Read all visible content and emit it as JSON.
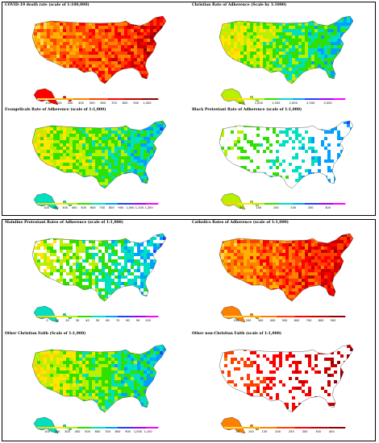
{
  "panels": [
    {
      "title": "COVID-19 death rate (scale of 1:100,000)",
      "scale": "heat",
      "ticks": [
        "100",
        "200",
        "300",
        "400",
        "500",
        "600",
        "700",
        "800",
        "900",
        "1,000"
      ]
    },
    {
      "title": "Christian Rate of Adherence (Scale by 1:1000)",
      "scale": "rainbow",
      "ticks": [
        "500",
        "1,000",
        "1,500",
        "2,000",
        "2,500",
        "3,000"
      ]
    },
    {
      "title": "Evangelicals Rate of Adherence (scale of 1:1,000)",
      "scale": "rainbow",
      "ticks": [
        "100",
        "200",
        "300",
        "400",
        "500",
        "600",
        "700",
        "800",
        "900",
        "1,000",
        "1,100",
        "1,200"
      ]
    },
    {
      "title": "Black Protestant Rate of Adherence (scale of 1:1,000)",
      "scale": "rainbow",
      "ticks": [
        "50",
        "100",
        "150",
        "200",
        "250",
        "300"
      ]
    },
    {
      "title": "Mainline Protestant Rates of Adherence (scale of 1:1,000)",
      "scale": "rainbow",
      "ticks": [
        "0",
        "10",
        "20",
        "30",
        "40",
        "50",
        "60",
        "70",
        "80",
        "90",
        "100"
      ]
    },
    {
      "title": "Catholics Rates of Adherence (scale of 1:1,000)",
      "scale": "heat",
      "ticks": [
        "100",
        "200",
        "300",
        "400",
        "500",
        "600",
        "700",
        "800",
        "900"
      ]
    },
    {
      "title": "Other Christian Faith (Scale of 1:1,000)",
      "scale": "rainbow",
      "ticks": [
        "100",
        "200",
        "300",
        "400",
        "500",
        "600",
        "700",
        "800",
        "900",
        "1,000",
        "1,100"
      ]
    },
    {
      "title": "Other non-Christian Faith (scale of 1:1,000)",
      "scale": "heat",
      "ticks": [
        "50",
        "100",
        "150",
        "200",
        "250",
        "300",
        "350",
        "400"
      ]
    }
  ],
  "colors": {
    "heat": [
      "#ffd94a",
      "#ffb000",
      "#ff8000",
      "#ff4000",
      "#ff0000",
      "#c80000",
      "#900000"
    ],
    "rainbow": [
      "#ffd000",
      "#ffe600",
      "#b8f000",
      "#30e000",
      "#00e0c0",
      "#00a0ff",
      "#2040ff",
      "#a000ff",
      "#ff00ff"
    ]
  }
}
